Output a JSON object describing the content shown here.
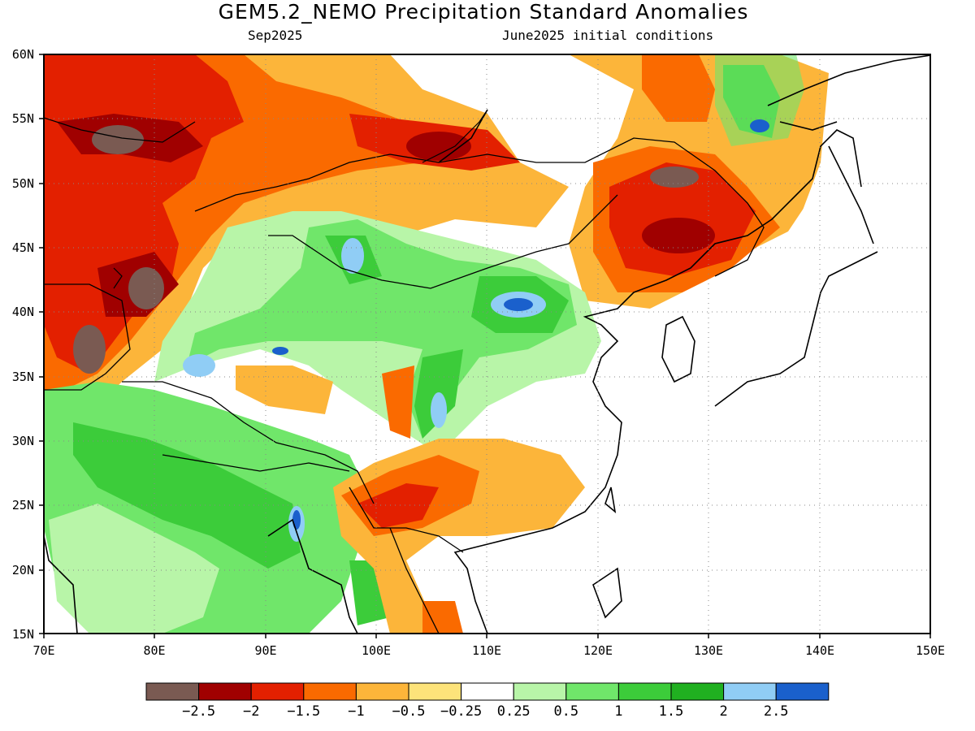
{
  "title": "GEM5.2_NEMO Precipitation Standard Anomalies",
  "subtitle_left": "Sep2025",
  "subtitle_right": "June2025 initial conditions",
  "lat_labels": [
    "60N",
    "55N",
    "50N",
    "45N",
    "40N",
    "35N",
    "30N",
    "25N",
    "20N",
    "15N"
  ],
  "lon_labels": [
    "70E",
    "80E",
    "90E",
    "100E",
    "110E",
    "120E",
    "130E",
    "140E",
    "150E"
  ],
  "colorbar": {
    "colors": [
      "#7a5a52",
      "#a00000",
      "#e32000",
      "#fa6a00",
      "#fcb53a",
      "#fde37a",
      "#ffffff",
      "#b8f5a8",
      "#70e66a",
      "#3ccc3a",
      "#20b020",
      "#90cdf5",
      "#1a60cc"
    ],
    "labels": [
      "−2.5",
      "−2",
      "−1.5",
      "−1",
      "−0.5",
      "−0.25",
      "0.25",
      "0.5",
      "1",
      "1.5",
      "2",
      "2.5"
    ]
  }
}
